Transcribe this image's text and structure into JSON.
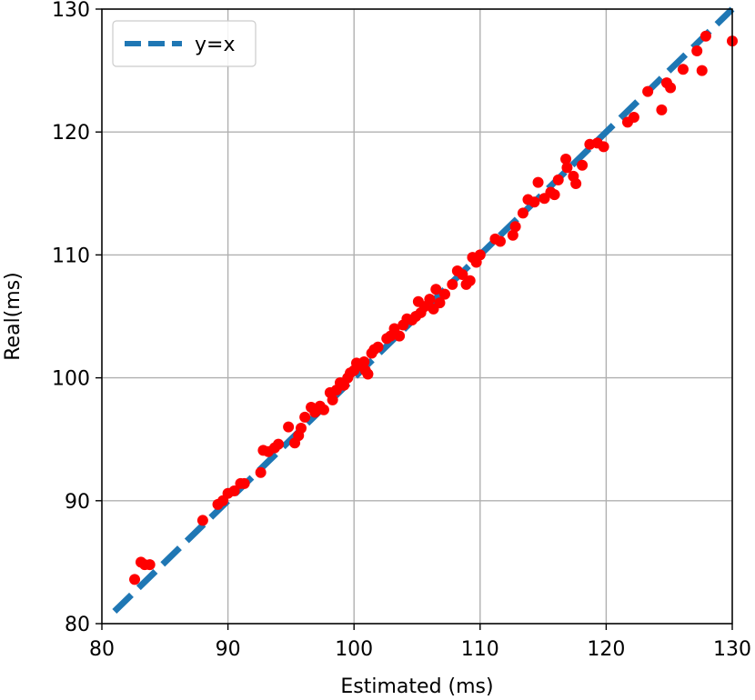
{
  "chart_data": {
    "type": "scatter",
    "title": "",
    "xlabel": "Estimated (ms)",
    "ylabel": "Real(ms)",
    "xlim": [
      80,
      130
    ],
    "ylim": [
      80,
      130
    ],
    "xticks": [
      "80",
      "90",
      "100",
      "110",
      "120",
      "130"
    ],
    "yticks": [
      "80",
      "90",
      "100",
      "110",
      "120",
      "130"
    ],
    "grid": true,
    "legend_position": "top-left",
    "reference_line": {
      "name": "y=x",
      "color": "#1f77b4",
      "style": "dashed",
      "from": [
        81,
        81
      ],
      "to": [
        130,
        130
      ]
    },
    "series": [
      {
        "color": "#ff0000",
        "points": [
          [
            82.6,
            83.6
          ],
          [
            83.1,
            85.0
          ],
          [
            83.4,
            84.8
          ],
          [
            83.8,
            84.8
          ],
          [
            88.0,
            88.4
          ],
          [
            89.2,
            89.7
          ],
          [
            89.6,
            90.0
          ],
          [
            90.0,
            90.6
          ],
          [
            90.5,
            90.8
          ],
          [
            91.0,
            91.4
          ],
          [
            91.3,
            91.4
          ],
          [
            92.6,
            92.3
          ],
          [
            92.8,
            94.1
          ],
          [
            93.2,
            94.0
          ],
          [
            93.7,
            94.3
          ],
          [
            94.0,
            94.6
          ],
          [
            94.8,
            96.0
          ],
          [
            95.3,
            94.7
          ],
          [
            95.6,
            95.3
          ],
          [
            95.8,
            95.9
          ],
          [
            96.1,
            96.8
          ],
          [
            96.6,
            97.6
          ],
          [
            96.9,
            97.2
          ],
          [
            97.3,
            97.7
          ],
          [
            97.6,
            97.4
          ],
          [
            98.1,
            98.8
          ],
          [
            98.3,
            98.2
          ],
          [
            98.6,
            99.0
          ],
          [
            98.9,
            99.6
          ],
          [
            99.2,
            99.4
          ],
          [
            99.5,
            100.0
          ],
          [
            99.7,
            100.4
          ],
          [
            100.0,
            100.6
          ],
          [
            100.2,
            101.2
          ],
          [
            100.5,
            101.0
          ],
          [
            100.8,
            101.3
          ],
          [
            100.9,
            100.6
          ],
          [
            101.1,
            100.3
          ],
          [
            101.4,
            102.0
          ],
          [
            101.6,
            102.3
          ],
          [
            101.9,
            102.5
          ],
          [
            102.6,
            103.2
          ],
          [
            102.9,
            103.4
          ],
          [
            103.2,
            104.0
          ],
          [
            103.6,
            103.4
          ],
          [
            103.9,
            104.3
          ],
          [
            104.2,
            104.8
          ],
          [
            104.6,
            104.7
          ],
          [
            104.9,
            105.0
          ],
          [
            105.1,
            106.2
          ],
          [
            105.3,
            105.3
          ],
          [
            105.6,
            105.8
          ],
          [
            106.0,
            106.4
          ],
          [
            106.3,
            105.6
          ],
          [
            106.5,
            107.2
          ],
          [
            106.8,
            106.1
          ],
          [
            107.2,
            106.8
          ],
          [
            107.8,
            107.6
          ],
          [
            108.2,
            108.7
          ],
          [
            108.6,
            108.4
          ],
          [
            108.9,
            107.6
          ],
          [
            109.2,
            107.9
          ],
          [
            109.4,
            109.8
          ],
          [
            109.7,
            109.4
          ],
          [
            110.0,
            110.0
          ],
          [
            111.2,
            111.3
          ],
          [
            111.6,
            111.1
          ],
          [
            112.6,
            111.6
          ],
          [
            112.8,
            112.3
          ],
          [
            113.4,
            113.4
          ],
          [
            113.8,
            114.5
          ],
          [
            114.3,
            114.3
          ],
          [
            114.6,
            115.9
          ],
          [
            115.1,
            114.6
          ],
          [
            115.6,
            115.1
          ],
          [
            115.9,
            114.9
          ],
          [
            116.2,
            116.1
          ],
          [
            116.8,
            117.8
          ],
          [
            116.9,
            117.1
          ],
          [
            117.4,
            116.4
          ],
          [
            117.6,
            115.8
          ],
          [
            118.1,
            117.3
          ],
          [
            118.7,
            119.0
          ],
          [
            119.3,
            119.1
          ],
          [
            119.8,
            118.8
          ],
          [
            121.7,
            120.8
          ],
          [
            122.2,
            121.2
          ],
          [
            123.3,
            123.3
          ],
          [
            124.4,
            121.8
          ],
          [
            124.8,
            124.0
          ],
          [
            125.1,
            123.6
          ],
          [
            126.1,
            125.1
          ],
          [
            127.2,
            126.6
          ],
          [
            127.6,
            125.0
          ],
          [
            127.9,
            127.8
          ],
          [
            130.0,
            127.4
          ]
        ]
      }
    ]
  }
}
